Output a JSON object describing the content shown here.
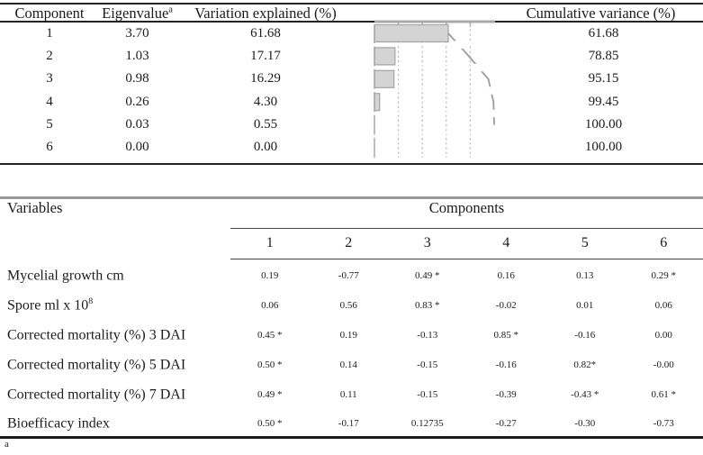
{
  "table1": {
    "headers": {
      "component": "Component",
      "eigenvalue": "Eigenvalue",
      "eigenvalue_sup": "a",
      "variation": "Variation explained (%)",
      "cumulative": "Cumulative variance (%)"
    },
    "rows": [
      {
        "component": "1",
        "eigenvalue": "3.70",
        "variation": "61.68",
        "cumulative": "61.68"
      },
      {
        "component": "2",
        "eigenvalue": "1.03",
        "variation": "17.17",
        "cumulative": "78.85"
      },
      {
        "component": "3",
        "eigenvalue": "0.98",
        "variation": "16.29",
        "cumulative": "95.15"
      },
      {
        "component": "4",
        "eigenvalue": "0.26",
        "variation": "4.30",
        "cumulative": "99.45"
      },
      {
        "component": "5",
        "eigenvalue": "0.03",
        "variation": "0.55",
        "cumulative": "100.00"
      },
      {
        "component": "6",
        "eigenvalue": "0.00",
        "variation": "0.00",
        "cumulative": "100.00"
      }
    ]
  },
  "chart_data": {
    "type": "bar",
    "orientation": "horizontal",
    "categories": [
      "1",
      "2",
      "3",
      "4",
      "5",
      "6"
    ],
    "series": [
      {
        "name": "Variation explained (%)",
        "style": "bar",
        "values": [
          61.68,
          17.17,
          16.29,
          4.3,
          0.55,
          0.0
        ]
      },
      {
        "name": "Cumulative variance (%)",
        "style": "line",
        "values": [
          61.68,
          78.85,
          95.15,
          99.45,
          100.0,
          100.0
        ]
      }
    ],
    "xlim": [
      0,
      100
    ],
    "gridlines": [
      20,
      40,
      60,
      80
    ],
    "grid": "dashed-vertical",
    "legend": "none",
    "bar_color": "#d4d4d4",
    "bar_border_color": "#a6a6a6",
    "line_color": "#9b9b9b",
    "axis_color": "#a9a9a9",
    "gridline_color": "#bdbdbd"
  },
  "table2": {
    "col_header_label": "Variables",
    "group_header": "Components",
    "columns": [
      "1",
      "2",
      "3",
      "4",
      "5",
      "6"
    ],
    "rows": [
      {
        "label": "Mycelial growth cm",
        "label_sup": "",
        "values": [
          "0.19",
          "-0.77",
          "0.49 *",
          "0.16",
          "0.13",
          "0.29 *"
        ]
      },
      {
        "label": "Spore ml x 10",
        "label_sup": "8",
        "values": [
          "0.06",
          "0.56",
          "0.83 *",
          "-0.02",
          "0.01",
          "0.06"
        ]
      },
      {
        "label": "Corrected mortality (%) 3 DAI",
        "label_sup": "",
        "values": [
          "0.45 *",
          "0.19",
          "-0.13",
          "0.85 *",
          "-0.16",
          "0.00"
        ]
      },
      {
        "label": "Corrected mortality (%) 5 DAI",
        "label_sup": "",
        "values": [
          "0.50 *",
          "0.14",
          "-0.15",
          "-0.16",
          "0.82*",
          "-0.00"
        ]
      },
      {
        "label": "Corrected mortality (%) 7 DAI",
        "label_sup": "",
        "values": [
          "0.49 *",
          "0.11",
          "-0.15",
          "-0.39",
          "-0.43 *",
          "0.61 *"
        ]
      },
      {
        "label": "Bioefficacy index",
        "label_sup": "",
        "values": [
          "0.50 *",
          "-0.17",
          "0.12735",
          "-0.27",
          "-0.30",
          "-0.73"
        ]
      }
    ]
  },
  "footnote": {
    "marker": "a"
  }
}
